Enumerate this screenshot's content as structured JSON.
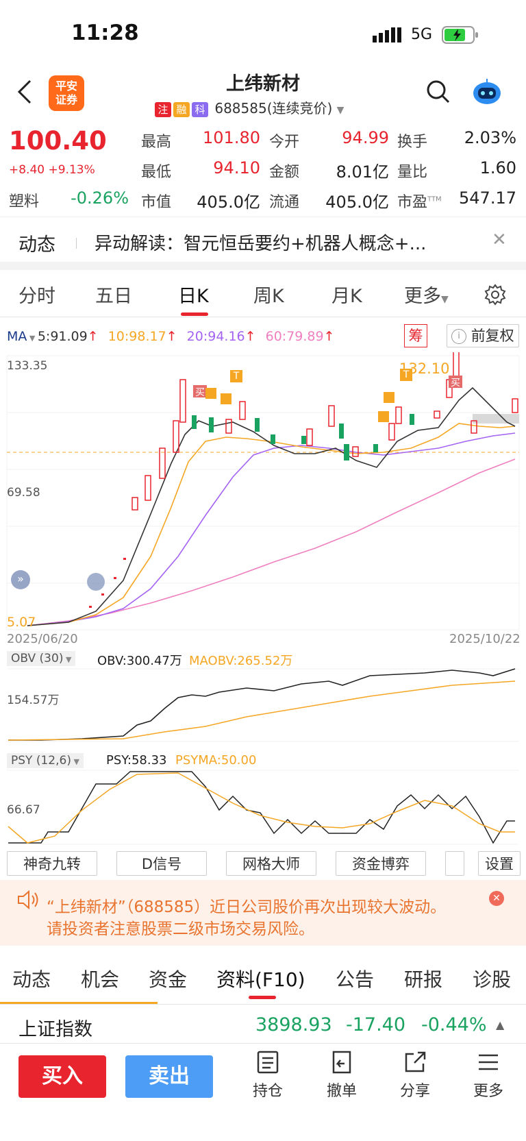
{
  "status_bar": {
    "time": "11:28",
    "network": "5G"
  },
  "header": {
    "title": "上纬新材",
    "tags": [
      "注",
      "融",
      "科"
    ],
    "code": "688585(连续竞价)",
    "logo_line1": "平安",
    "logo_line2": "证券"
  },
  "quote": {
    "price": "100.40",
    "change": "+8.40 +9.13%",
    "sector": "塑料",
    "sector_change": "-0.26%",
    "fields": [
      {
        "label": "最高",
        "value": "101.80",
        "color": "#e8242f"
      },
      {
        "label": "今开",
        "value": "94.99",
        "color": "#e8242f"
      },
      {
        "label": "换手",
        "value": "2.03%",
        "color": "#222222"
      },
      {
        "label": "最低",
        "value": "94.10",
        "color": "#e8242f"
      },
      {
        "label": "金额",
        "value": "8.01亿",
        "color": "#222222"
      },
      {
        "label": "量比",
        "value": "1.60",
        "color": "#222222"
      },
      {
        "label": "市值",
        "value": "405.0亿",
        "color": "#222222"
      },
      {
        "label": "流通",
        "value": "405.0亿",
        "color": "#222222"
      },
      {
        "label": "市盈",
        "value": "547.17",
        "color": "#222222"
      }
    ],
    "pe_superscript": "TTM"
  },
  "news": {
    "label": "动态",
    "text": "异动解读：智元恒岳要约+机器人概念+..."
  },
  "period_tabs": [
    "分时",
    "五日",
    "日K",
    "周K",
    "月K",
    "更多"
  ],
  "active_period": "日K",
  "ma_line": {
    "label": "MA",
    "ma5": "5:91.09",
    "ma10": "10:98.17",
    "ma20": "20:94.16",
    "ma60": "60:79.89",
    "chou": "筹",
    "fuquan": "前复权"
  },
  "kline": {
    "y_high": "133.35",
    "y_mid": "69.58",
    "y_low": "5.07",
    "max_label": "132.10",
    "date_start": "2025/06/20",
    "date_end": "2025/10/22",
    "mark_buy": "买",
    "mark_t": "T"
  },
  "obv": {
    "selector": "OBV (30)",
    "obv": "OBV:300.47万",
    "maobv": "MAOBV:265.52万",
    "y_label": "154.57万"
  },
  "psy": {
    "selector": "PSY (12,6)",
    "psy": "PSY:58.33",
    "psyma": "PSYMA:50.00",
    "y_label": "66.67"
  },
  "tools": [
    "神奇九转",
    "D信号",
    "网格大师",
    "资金博弈",
    "设置"
  ],
  "warning": {
    "line1": "“上纬新材”（688585）近日公司股价再次出现较大波动。",
    "line2": "请投资者注意股票二级市场交易风险。"
  },
  "bottom_tabs": [
    "动态",
    "机会",
    "资金",
    "资料(F10)",
    "公告",
    "研报",
    "诊股"
  ],
  "active_bottom_tab": "资料(F10)",
  "index_bar": {
    "name": "上证指数",
    "value": "3898.93",
    "change": "-17.40",
    "pct": "-0.44%"
  },
  "actions": {
    "buy": "买入",
    "sell": "卖出",
    "hold": "持仓",
    "cancel": "撤单",
    "share": "分享",
    "more": "更多"
  },
  "colors": {
    "up": "#e8242f",
    "down": "#1aa260",
    "ma5": "#333333",
    "ma10": "#f5a623",
    "ma20": "#a463f2",
    "ma60": "#f07fbf",
    "accent": "#e8242f",
    "buy": "#e8242f",
    "sell": "#4d9cf5"
  }
}
